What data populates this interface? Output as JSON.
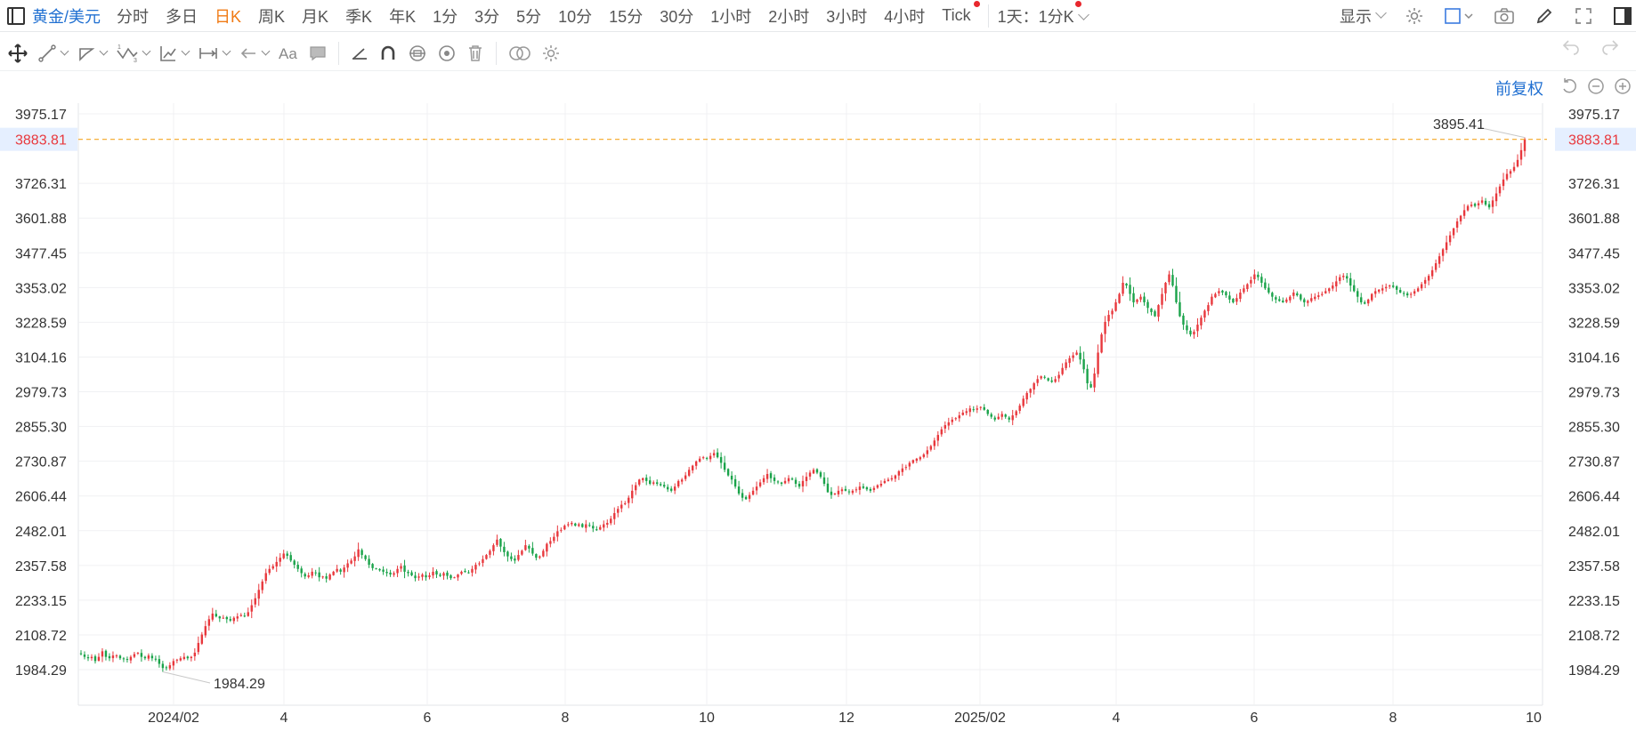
{
  "topbar": {
    "symbol": "黄金/美元",
    "periods": [
      "分时",
      "多日",
      "日K",
      "周K",
      "月K",
      "季K",
      "年K",
      "1分",
      "3分",
      "5分",
      "10分",
      "15分",
      "30分",
      "1小时",
      "2小时",
      "3小时",
      "4小时",
      "Tick"
    ],
    "active_period": "日K",
    "dropdown": "1天：1分K",
    "display": "显示"
  },
  "chart_controls": {
    "adjust": "前复权"
  },
  "colors": {
    "up": "#e8383d",
    "down": "#1aa34a",
    "accent": "#1f6fd1",
    "active": "#f07a14",
    "last_price": "#e8383d",
    "dashed_line": "#f5a623"
  },
  "chart_data": {
    "type": "candlestick",
    "ylim": [
      1922.08,
      4037.38
    ],
    "y_ticks": [
      "3975.17",
      "3726.31",
      "3601.88",
      "3477.45",
      "3353.02",
      "3228.59",
      "3104.16",
      "2979.73",
      "2855.30",
      "2730.87",
      "2606.44",
      "2482.01",
      "2357.58",
      "2233.15",
      "2108.72",
      "1984.29"
    ],
    "x_ticks": [
      "2024/02",
      "4",
      "6",
      "8",
      "10",
      "12",
      "2025/02",
      "4",
      "6",
      "8",
      "10"
    ],
    "last_price": "3883.81",
    "max_label": "3895.41",
    "min_label": "1984.29",
    "grid": true,
    "path_close": [
      2040,
      2030,
      2025,
      2030,
      2015,
      2030,
      2050,
      2030,
      2025,
      2035,
      2035,
      2025,
      2022,
      2020,
      2030,
      2040,
      2045,
      2030,
      2025,
      2035,
      2025,
      2020,
      2005,
      1990,
      1990,
      2000,
      2015,
      2020,
      2025,
      2030,
      2025,
      2030,
      2045,
      2080,
      2110,
      2140,
      2165,
      2185,
      2175,
      2168,
      2170,
      2165,
      2160,
      2170,
      2175,
      2180,
      2175,
      2190,
      2215,
      2240,
      2270,
      2300,
      2330,
      2345,
      2355,
      2370,
      2385,
      2400,
      2392,
      2375,
      2360,
      2345,
      2330,
      2318,
      2322,
      2335,
      2330,
      2315,
      2318,
      2310,
      2325,
      2335,
      2345,
      2335,
      2350,
      2365,
      2375,
      2390,
      2415,
      2395,
      2380,
      2360,
      2348,
      2345,
      2340,
      2335,
      2330,
      2325,
      2330,
      2345,
      2355,
      2335,
      2330,
      2322,
      2312,
      2318,
      2325,
      2315,
      2322,
      2335,
      2325,
      2320,
      2330,
      2320,
      2312,
      2315,
      2325,
      2335,
      2335,
      2330,
      2345,
      2360,
      2365,
      2380,
      2395,
      2410,
      2430,
      2450,
      2425,
      2405,
      2390,
      2380,
      2375,
      2395,
      2410,
      2430,
      2418,
      2400,
      2385,
      2390,
      2410,
      2435,
      2445,
      2460,
      2480,
      2485,
      2500,
      2505,
      2510,
      2500,
      2505,
      2495,
      2505,
      2500,
      2490,
      2485,
      2495,
      2505,
      2510,
      2525,
      2545,
      2560,
      2575,
      2580,
      2600,
      2625,
      2645,
      2665,
      2670,
      2660,
      2650,
      2655,
      2650,
      2645,
      2640,
      2630,
      2625,
      2640,
      2660,
      2665,
      2680,
      2700,
      2715,
      2730,
      2740,
      2745,
      2740,
      2750,
      2760,
      2745,
      2725,
      2700,
      2680,
      2665,
      2640,
      2615,
      2600,
      2595,
      2610,
      2625,
      2640,
      2655,
      2670,
      2685,
      2670,
      2660,
      2655,
      2650,
      2660,
      2670,
      2665,
      2650,
      2640,
      2660,
      2675,
      2690,
      2700,
      2690,
      2675,
      2650,
      2620,
      2610,
      2615,
      2625,
      2630,
      2625,
      2620,
      2625,
      2630,
      2640,
      2635,
      2630,
      2625,
      2635,
      2645,
      2650,
      2660,
      2665,
      2670,
      2680,
      2695,
      2705,
      2710,
      2725,
      2735,
      2740,
      2745,
      2755,
      2770,
      2785,
      2805,
      2825,
      2845,
      2860,
      2870,
      2880,
      2885,
      2895,
      2905,
      2910,
      2920,
      2915,
      2920,
      2925,
      2915,
      2900,
      2890,
      2880,
      2890,
      2900,
      2890,
      2880,
      2895,
      2910,
      2930,
      2955,
      2975,
      2990,
      3010,
      3025,
      3035,
      3030,
      3020,
      3015,
      3025,
      3040,
      3065,
      3085,
      3100,
      3110,
      3120,
      3095,
      3060,
      3010,
      2995,
      3045,
      3120,
      3185,
      3230,
      3255,
      3270,
      3300,
      3330,
      3370,
      3360,
      3330,
      3300,
      3310,
      3320,
      3300,
      3280,
      3265,
      3250,
      3290,
      3330,
      3370,
      3400,
      3360,
      3300,
      3250,
      3220,
      3200,
      3185,
      3195,
      3220,
      3245,
      3270,
      3290,
      3320,
      3330,
      3340,
      3335,
      3325,
      3310,
      3300,
      3315,
      3335,
      3350,
      3365,
      3380,
      3400,
      3390,
      3370,
      3350,
      3335,
      3320,
      3310,
      3305,
      3300,
      3310,
      3320,
      3335,
      3325,
      3310,
      3300,
      3305,
      3315,
      3320,
      3325,
      3330,
      3340,
      3350,
      3360,
      3375,
      3390,
      3395,
      3385,
      3360,
      3340,
      3320,
      3300,
      3295,
      3310,
      3330,
      3340,
      3345,
      3350,
      3355,
      3360,
      3355,
      3345,
      3335,
      3330,
      3325,
      3330,
      3340,
      3350,
      3365,
      3380,
      3395,
      3415,
      3440,
      3465,
      3490,
      3515,
      3540,
      3565,
      3590,
      3610,
      3630,
      3645,
      3650,
      3645,
      3655,
      3665,
      3650,
      3640,
      3665,
      3690,
      3715,
      3740,
      3760,
      3770,
      3785,
      3810,
      3845,
      3884
    ]
  }
}
